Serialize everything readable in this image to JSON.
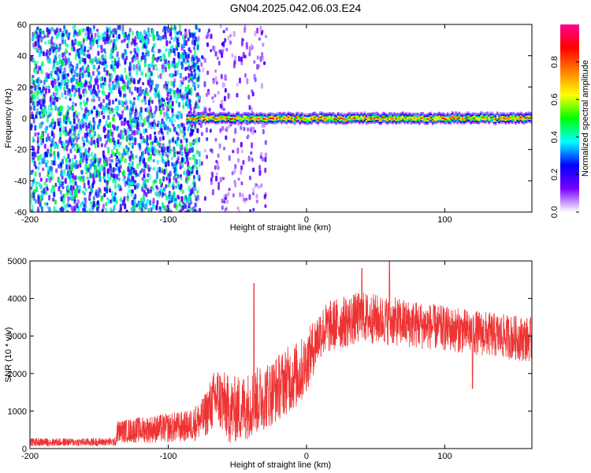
{
  "title": "GN04.2025.042.06.03.E24",
  "chart_data": [
    {
      "type": "heatmap",
      "xlabel": "Height of straight line (km)",
      "ylabel": "Frequency (Hz)",
      "xlim": [
        -200,
        163
      ],
      "ylim": [
        -60,
        60
      ],
      "x_ticks": [
        -200,
        -100,
        0,
        100
      ],
      "y_ticks": [
        -60,
        -40,
        -20,
        0,
        20,
        40,
        60
      ],
      "grid": false,
      "description_regions": [
        {
          "x_from": -200,
          "x_to": -78,
          "kind": "broadband noise",
          "mean_amplitude": 0.25
        },
        {
          "x_from": -78,
          "x_to": -30,
          "kind": "sparse noise",
          "mean_amplitude": 0.05
        },
        {
          "x_from": -87,
          "x_to": 163,
          "kind": "carrier line",
          "frequency_hz": 0,
          "width_hz": 6,
          "peak_amplitude": 0.95
        }
      ],
      "colorbar": {
        "label": "Normalized spectral amplitude",
        "range": [
          0,
          1
        ],
        "ticks": [
          0.0,
          0.2,
          0.4,
          0.6,
          0.8
        ],
        "colors": [
          "#ffffff",
          "#7a00ff",
          "#0000ff",
          "#00ffff",
          "#00ff00",
          "#ffff00",
          "#ff7f00",
          "#ff0000",
          "#ff0090"
        ]
      }
    },
    {
      "type": "line",
      "xlabel": "Height of straight line (km)",
      "ylabel": "SNR (10 * v/v)",
      "xlim": [
        -200,
        163
      ],
      "ylim": [
        0,
        5000
      ],
      "x_ticks": [
        -200,
        -100,
        0,
        100
      ],
      "y_ticks": [
        0,
        1000,
        2000,
        3000,
        4000,
        5000
      ],
      "grid": false,
      "color": "#ee3333",
      "envelope": {
        "x": [
          -200,
          -180,
          -160,
          -138,
          -137,
          -120,
          -100,
          -85,
          -75,
          -65,
          -55,
          -45,
          -35,
          -25,
          -15,
          -5,
          0,
          5,
          10,
          20,
          30,
          40,
          60,
          80,
          100,
          120,
          140,
          163
        ],
        "y_mean": [
          170,
          170,
          170,
          180,
          450,
          500,
          550,
          600,
          800,
          1400,
          1000,
          1100,
          1300,
          1500,
          1800,
          2000,
          2300,
          2700,
          3100,
          3300,
          3400,
          3500,
          3400,
          3300,
          3200,
          3100,
          3000,
          2900
        ],
        "y_spread": [
          110,
          110,
          110,
          110,
          300,
          350,
          400,
          420,
          550,
          850,
          900,
          900,
          900,
          900,
          900,
          900,
          800,
          750,
          700,
          700,
          700,
          700,
          650,
          650,
          600,
          600,
          600,
          600
        ]
      },
      "spikes": [
        {
          "x": -38,
          "y": 4400
        },
        {
          "x": 60,
          "y": 5000
        },
        {
          "x": 40,
          "y": 4800
        },
        {
          "x": 120,
          "y": 1600
        }
      ]
    }
  ]
}
